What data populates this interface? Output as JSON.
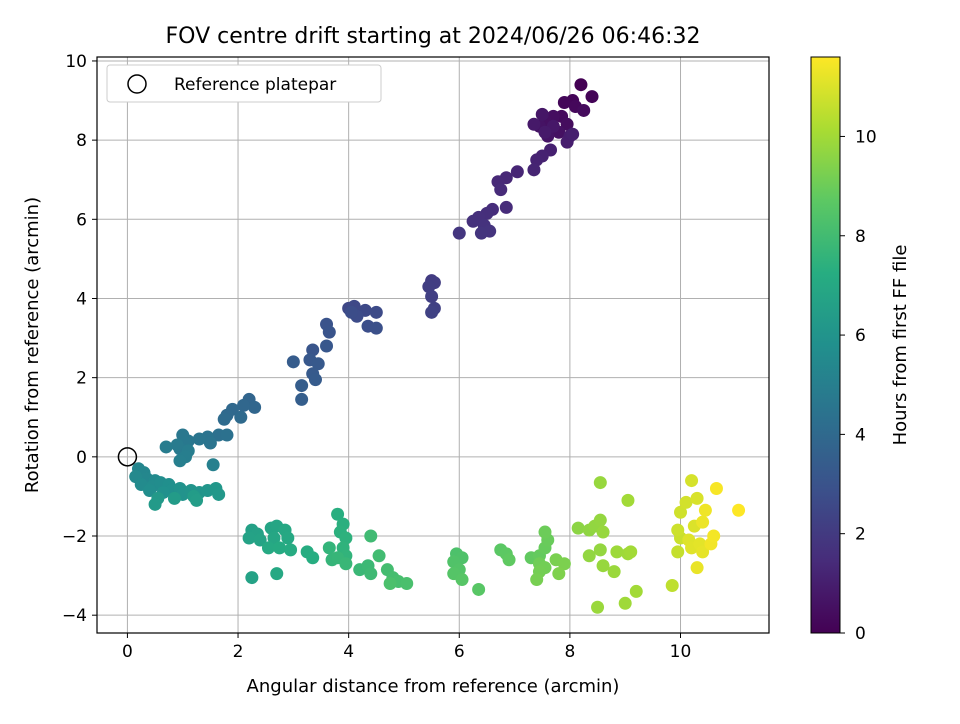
{
  "chart_data": {
    "type": "scatter",
    "title": "FOV centre drift starting at 2024/06/26 06:46:32",
    "xlabel": "Angular distance from reference (arcmin)",
    "ylabel": "Rotation from reference (arcmin)",
    "xlim": [
      -0.55,
      11.6
    ],
    "ylim": [
      -4.45,
      10.1
    ],
    "xticks": [
      0,
      2,
      4,
      6,
      8,
      10
    ],
    "yticks": [
      -4,
      -2,
      0,
      2,
      4,
      6,
      8,
      10
    ],
    "grid": true,
    "legend": {
      "placement": "top-left",
      "entries": [
        "Reference platepar"
      ]
    },
    "reference": {
      "x": 0,
      "y": 0
    },
    "colorbar": {
      "label": "Hours from first FF file",
      "colormap": "viridis",
      "range": [
        0,
        11.6
      ],
      "ticks": [
        0,
        2,
        4,
        6,
        8,
        10
      ]
    },
    "points": [
      [
        8.2,
        9.4,
        0.0
      ],
      [
        8.4,
        9.1,
        0.1
      ],
      [
        8.05,
        9.0,
        0.15
      ],
      [
        7.9,
        8.95,
        0.2
      ],
      [
        8.1,
        8.85,
        0.25
      ],
      [
        7.85,
        8.6,
        0.3
      ],
      [
        8.25,
        8.75,
        0.35
      ],
      [
        7.95,
        8.4,
        0.4
      ],
      [
        7.7,
        8.6,
        0.45
      ],
      [
        7.55,
        8.5,
        0.5
      ],
      [
        7.8,
        8.2,
        0.55
      ],
      [
        7.45,
        8.35,
        0.6
      ],
      [
        7.6,
        8.1,
        0.65
      ],
      [
        7.5,
        8.65,
        0.7
      ],
      [
        7.7,
        8.35,
        0.75
      ],
      [
        7.35,
        8.4,
        0.8
      ],
      [
        7.55,
        8.2,
        0.85
      ],
      [
        8.0,
        8.1,
        0.9
      ],
      [
        7.95,
        7.95,
        0.95
      ],
      [
        8.05,
        8.15,
        1.0
      ],
      [
        7.65,
        7.75,
        1.05
      ],
      [
        7.5,
        7.6,
        1.1
      ],
      [
        7.4,
        7.5,
        1.15
      ],
      [
        7.35,
        7.25,
        1.2
      ],
      [
        7.05,
        7.2,
        1.25
      ],
      [
        6.85,
        7.05,
        1.3
      ],
      [
        6.7,
        6.95,
        1.35
      ],
      [
        6.75,
        6.75,
        1.4
      ],
      [
        6.85,
        6.3,
        1.45
      ],
      [
        6.6,
        6.25,
        1.5
      ],
      [
        6.5,
        6.15,
        1.55
      ],
      [
        6.35,
        6.05,
        1.6
      ],
      [
        6.25,
        5.95,
        1.65
      ],
      [
        6.45,
        5.85,
        1.7
      ],
      [
        6.55,
        5.7,
        1.75
      ],
      [
        6.4,
        5.65,
        1.8
      ],
      [
        6.0,
        5.65,
        1.85
      ],
      [
        5.5,
        4.45,
        2.05
      ],
      [
        5.55,
        4.4,
        2.1
      ],
      [
        5.45,
        4.3,
        2.15
      ],
      [
        5.5,
        4.05,
        2.2
      ],
      [
        5.55,
        3.75,
        2.25
      ],
      [
        5.5,
        3.65,
        2.3
      ],
      [
        4.0,
        3.75,
        2.5
      ],
      [
        4.1,
        3.8,
        2.55
      ],
      [
        4.3,
        3.7,
        2.6
      ],
      [
        4.5,
        3.65,
        2.65
      ],
      [
        4.15,
        3.55,
        2.7
      ],
      [
        4.05,
        3.65,
        2.75
      ],
      [
        4.35,
        3.3,
        2.8
      ],
      [
        4.5,
        3.25,
        2.85
      ],
      [
        3.6,
        3.35,
        3.0
      ],
      [
        3.65,
        3.15,
        3.05
      ],
      [
        3.35,
        2.7,
        3.1
      ],
      [
        3.6,
        2.8,
        3.15
      ],
      [
        3.3,
        2.45,
        3.2
      ],
      [
        3.45,
        2.35,
        3.25
      ],
      [
        3.35,
        2.1,
        3.3
      ],
      [
        3.4,
        1.95,
        3.35
      ],
      [
        3.0,
        2.4,
        3.4
      ],
      [
        3.15,
        1.8,
        3.45
      ],
      [
        3.15,
        1.45,
        3.5
      ],
      [
        2.2,
        1.45,
        3.8
      ],
      [
        2.3,
        1.25,
        3.85
      ],
      [
        2.1,
        1.3,
        3.9
      ],
      [
        1.9,
        1.2,
        3.95
      ],
      [
        1.8,
        1.05,
        4.0
      ],
      [
        2.05,
        1.0,
        4.05
      ],
      [
        1.75,
        0.95,
        4.1
      ],
      [
        1.65,
        0.55,
        4.3
      ],
      [
        1.8,
        0.55,
        4.35
      ],
      [
        1.45,
        0.5,
        4.45
      ],
      [
        1.5,
        0.35,
        4.5
      ],
      [
        1.3,
        0.45,
        4.55
      ],
      [
        1.1,
        0.4,
        4.6
      ],
      [
        1.0,
        0.55,
        4.65
      ],
      [
        1.05,
        0.35,
        4.7
      ],
      [
        0.95,
        0.2,
        4.75
      ],
      [
        0.9,
        0.3,
        4.8
      ],
      [
        0.7,
        0.25,
        4.85
      ],
      [
        1.1,
        0.15,
        4.9
      ],
      [
        1.05,
        0.0,
        4.95
      ],
      [
        0.95,
        -0.1,
        5.0
      ],
      [
        1.55,
        -0.2,
        5.05
      ],
      [
        0.2,
        -0.3,
        5.3
      ],
      [
        0.3,
        -0.4,
        5.35
      ],
      [
        0.35,
        -0.55,
        5.4
      ],
      [
        0.15,
        -0.5,
        5.45
      ],
      [
        0.5,
        -0.6,
        5.5
      ],
      [
        0.25,
        -0.7,
        5.55
      ],
      [
        0.45,
        -0.75,
        5.6
      ],
      [
        0.6,
        -0.65,
        5.65
      ],
      [
        0.4,
        -0.85,
        5.7
      ],
      [
        0.75,
        -0.7,
        5.75
      ],
      [
        0.8,
        -0.85,
        5.8
      ],
      [
        0.65,
        -0.9,
        5.85
      ],
      [
        0.95,
        -0.8,
        5.9
      ],
      [
        1.0,
        -0.95,
        5.95
      ],
      [
        1.15,
        -0.85,
        6.0
      ],
      [
        1.3,
        -0.9,
        6.05
      ],
      [
        1.45,
        -0.85,
        6.1
      ],
      [
        1.6,
        -0.8,
        6.15
      ],
      [
        1.65,
        -0.95,
        6.2
      ],
      [
        0.55,
        -1.05,
        6.25
      ],
      [
        0.5,
        -1.2,
        6.3
      ],
      [
        0.85,
        -1.05,
        6.35
      ],
      [
        1.2,
        -1.0,
        6.4
      ],
      [
        1.25,
        -1.1,
        6.45
      ],
      [
        2.25,
        -1.85,
        6.6
      ],
      [
        2.35,
        -1.95,
        6.65
      ],
      [
        2.2,
        -2.05,
        6.7
      ],
      [
        2.4,
        -2.1,
        6.75
      ],
      [
        2.6,
        -1.8,
        6.8
      ],
      [
        2.7,
        -1.75,
        6.85
      ],
      [
        2.65,
        -2.05,
        6.9
      ],
      [
        2.85,
        -1.85,
        6.95
      ],
      [
        2.9,
        -2.05,
        7.0
      ],
      [
        2.55,
        -2.3,
        7.05
      ],
      [
        2.75,
        -2.3,
        7.1
      ],
      [
        2.95,
        -2.35,
        7.15
      ],
      [
        3.25,
        -2.4,
        7.2
      ],
      [
        3.35,
        -2.55,
        7.25
      ],
      [
        3.8,
        -1.45,
        7.3
      ],
      [
        3.9,
        -1.7,
        7.35
      ],
      [
        3.85,
        -1.9,
        7.4
      ],
      [
        3.95,
        -2.05,
        7.45
      ],
      [
        3.9,
        -2.3,
        7.5
      ],
      [
        3.95,
        -2.5,
        7.55
      ],
      [
        3.65,
        -2.3,
        7.6
      ],
      [
        3.7,
        -2.6,
        7.65
      ],
      [
        3.8,
        -2.55,
        7.7
      ],
      [
        3.95,
        -2.7,
        7.75
      ],
      [
        4.2,
        -2.85,
        7.8
      ],
      [
        4.35,
        -2.75,
        7.85
      ],
      [
        4.4,
        -2.95,
        7.9
      ],
      [
        4.4,
        -2.0,
        7.95
      ],
      [
        4.55,
        -2.5,
        8.0
      ],
      [
        4.7,
        -2.85,
        8.05
      ],
      [
        4.8,
        -3.05,
        8.1
      ],
      [
        4.9,
        -3.15,
        8.15
      ],
      [
        5.05,
        -3.2,
        8.2
      ],
      [
        4.75,
        -3.2,
        8.25
      ],
      [
        2.25,
        -3.05,
        6.7
      ],
      [
        2.7,
        -2.95,
        7.0
      ],
      [
        5.95,
        -2.45,
        8.3
      ],
      [
        6.05,
        -2.55,
        8.35
      ],
      [
        5.9,
        -2.65,
        8.4
      ],
      [
        6.0,
        -2.85,
        8.45
      ],
      [
        5.9,
        -2.95,
        8.5
      ],
      [
        6.05,
        -3.1,
        8.55
      ],
      [
        6.35,
        -3.35,
        8.6
      ],
      [
        6.75,
        -2.35,
        8.65
      ],
      [
        6.85,
        -2.45,
        8.7
      ],
      [
        6.9,
        -2.6,
        8.75
      ],
      [
        7.3,
        -2.55,
        8.8
      ],
      [
        7.45,
        -2.5,
        8.85
      ],
      [
        7.55,
        -2.3,
        8.9
      ],
      [
        7.6,
        -2.1,
        8.95
      ],
      [
        7.55,
        -1.9,
        9.0
      ],
      [
        7.45,
        -2.7,
        9.05
      ],
      [
        7.55,
        -2.8,
        9.1
      ],
      [
        7.45,
        -2.9,
        9.15
      ],
      [
        7.4,
        -3.1,
        9.2
      ],
      [
        7.75,
        -2.6,
        9.25
      ],
      [
        7.9,
        -2.7,
        9.3
      ],
      [
        7.8,
        -2.95,
        9.35
      ],
      [
        8.15,
        -1.8,
        9.6
      ],
      [
        8.35,
        -1.85,
        9.65
      ],
      [
        8.45,
        -1.75,
        9.7
      ],
      [
        8.55,
        -1.6,
        9.75
      ],
      [
        8.6,
        -1.9,
        9.8
      ],
      [
        8.35,
        -2.5,
        9.7
      ],
      [
        8.55,
        -2.35,
        9.75
      ],
      [
        8.6,
        -2.75,
        9.8
      ],
      [
        8.8,
        -2.9,
        9.85
      ],
      [
        8.85,
        -2.4,
        9.9
      ],
      [
        9.05,
        -2.45,
        9.95
      ],
      [
        9.1,
        -2.4,
        10.0
      ],
      [
        9.05,
        -1.1,
        10.0
      ],
      [
        8.55,
        -0.65,
        9.8
      ],
      [
        8.5,
        -3.8,
        9.85
      ],
      [
        9.0,
        -3.7,
        9.95
      ],
      [
        9.2,
        -3.4,
        10.0
      ],
      [
        9.85,
        -3.25,
        10.5
      ],
      [
        9.95,
        -2.4,
        10.6
      ],
      [
        10.0,
        -2.05,
        10.7
      ],
      [
        9.95,
        -1.85,
        10.75
      ],
      [
        10.0,
        -1.4,
        10.8
      ],
      [
        10.1,
        -1.15,
        10.85
      ],
      [
        10.2,
        -0.6,
        10.9
      ],
      [
        10.3,
        -1.05,
        10.95
      ],
      [
        10.25,
        -1.75,
        11.0
      ],
      [
        10.15,
        -2.1,
        11.05
      ],
      [
        10.2,
        -2.3,
        11.1
      ],
      [
        10.35,
        -2.2,
        11.15
      ],
      [
        10.4,
        -2.4,
        11.2
      ],
      [
        10.3,
        -2.8,
        11.25
      ],
      [
        10.4,
        -1.65,
        11.3
      ],
      [
        10.45,
        -1.35,
        11.35
      ],
      [
        10.55,
        -2.2,
        11.4
      ],
      [
        10.6,
        -2.0,
        11.45
      ],
      [
        10.65,
        -0.8,
        11.5
      ],
      [
        11.05,
        -1.35,
        11.6
      ]
    ]
  }
}
